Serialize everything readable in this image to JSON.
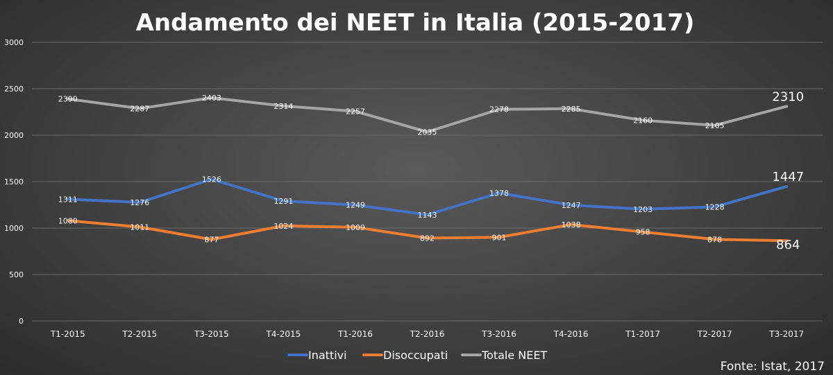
{
  "chart_data": {
    "type": "line",
    "title": "Andamento dei NEET in Italia (2015-2017)",
    "categories": [
      "T1-2015",
      "T2-2015",
      "T3-2015",
      "T4-2015",
      "T1-2016",
      "T2-2016",
      "T3-2016",
      "T4-2016",
      "T1-2017",
      "T2-2017",
      "T3-2017"
    ],
    "ylim": [
      0,
      3000
    ],
    "yticks": [
      0,
      500,
      1000,
      1500,
      2000,
      2500,
      3000
    ],
    "grid": true,
    "legend_position": "bottom",
    "series": [
      {
        "name": "Inattivi",
        "color": "#4472c4",
        "values": [
          1311,
          1276,
          1526,
          1291,
          1249,
          1143,
          1378,
          1247,
          1203,
          1228,
          1447
        ]
      },
      {
        "name": "Disoccupati",
        "color": "#ed7d31",
        "values": [
          1080,
          1011,
          877,
          1024,
          1009,
          892,
          901,
          1038,
          958,
          878,
          864
        ]
      },
      {
        "name": "Totale NEET",
        "color": "#a5a5a5",
        "values": [
          2390,
          2287,
          2403,
          2314,
          2257,
          2035,
          2278,
          2285,
          2160,
          2105,
          2310
        ]
      }
    ]
  },
  "source_note": "Fonte: Istat, 2017"
}
